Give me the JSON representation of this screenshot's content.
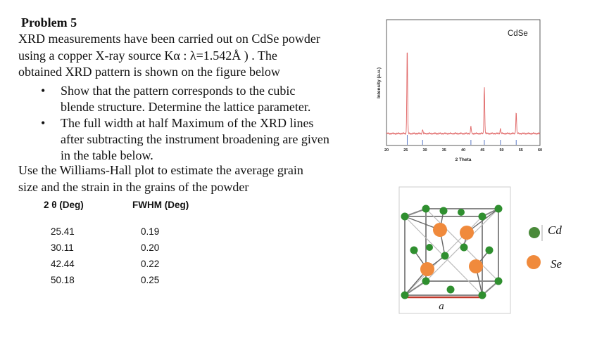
{
  "problem": {
    "title": "Problem 5",
    "intro_lines": [
      "XRD measurements  have been carried out on CdSe powder",
      "using a copper  X-ray source  Kα : λ=1.542Å ) . The",
      "obtained XRD pattern is shown on the figure below"
    ],
    "bullets": [
      [
        "Show that the pattern corresponds to the cubic",
        "blende structure.  Determine the lattice parameter."
      ],
      [
        "The full width at half Maximum of the XRD lines",
        "after subtracting the instrument broadening are given",
        "in the table below."
      ]
    ],
    "closing_lines": [
      "Use the Williams-Hall  plot to estimate  the average grain",
      "size and the  strain  in the grains of the powder"
    ]
  },
  "table": {
    "headers": [
      "2 θ (Deg)",
      "FWHM (Deg)"
    ],
    "rows": [
      [
        "25.41",
        "0.19"
      ],
      [
        "30.11",
        "0.20"
      ],
      [
        "42.44",
        "0.22"
      ],
      [
        "50.18",
        "0.25"
      ]
    ]
  },
  "chart_data": {
    "type": "line",
    "title": "CdSe",
    "xlabel": "2 Theta",
    "ylabel": "Intensity (a.u.)",
    "xlim": [
      20,
      60
    ],
    "x_ticks": [
      20,
      25,
      30,
      35,
      40,
      45,
      50,
      55,
      60
    ],
    "color": "#e06666",
    "reference_color": "#4a6bbf",
    "peaks": [
      {
        "x": 25.4,
        "height": 1.0
      },
      {
        "x": 29.4,
        "height": 0.05
      },
      {
        "x": 42.0,
        "height": 0.08
      },
      {
        "x": 45.5,
        "height": 0.54
      },
      {
        "x": 49.7,
        "height": 0.06
      },
      {
        "x": 53.8,
        "height": 0.25
      }
    ],
    "reference_lines": [
      25.4,
      29.4,
      42.0,
      45.5,
      49.7,
      53.8
    ]
  },
  "structure": {
    "lattice_label": "a",
    "legend": [
      {
        "label": "Cd",
        "color": "#4a8a3a"
      },
      {
        "label": "Se",
        "color": "#f08a3c"
      }
    ]
  }
}
